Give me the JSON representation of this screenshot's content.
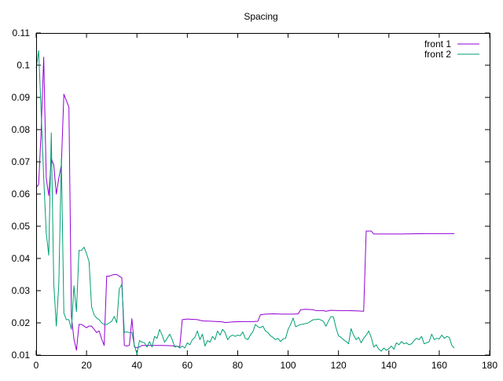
{
  "chart_data": {
    "type": "line",
    "title": "Spacing",
    "xlabel": "",
    "ylabel": "",
    "xlim": [
      0,
      180
    ],
    "ylim": [
      0.01,
      0.11
    ],
    "x_ticks": [
      "0",
      "20",
      "40",
      "60",
      "80",
      "100",
      "120",
      "140",
      "160",
      "180"
    ],
    "y_ticks": [
      "0.01",
      "0.02",
      "0.03",
      "0.04",
      "0.05",
      "0.06",
      "0.07",
      "0.08",
      "0.09",
      "0.1",
      "0.11"
    ],
    "grid": false,
    "legend_position": "top-right",
    "series": [
      {
        "name": "front 1",
        "color": "#9400d3",
        "points": [
          [
            0,
            0.062
          ],
          [
            1,
            0.063
          ],
          [
            2,
            0.08
          ],
          [
            3,
            0.1025
          ],
          [
            4,
            0.065
          ],
          [
            5,
            0.0595
          ],
          [
            6,
            0.071
          ],
          [
            7,
            0.069
          ],
          [
            8,
            0.06
          ],
          [
            9,
            0.065
          ],
          [
            10,
            0.069
          ],
          [
            11,
            0.091
          ],
          [
            12,
            0.089
          ],
          [
            13,
            0.087
          ],
          [
            14,
            0.022
          ],
          [
            15,
            0.015
          ],
          [
            16,
            0.0115
          ],
          [
            17,
            0.0195
          ],
          [
            18,
            0.0195
          ],
          [
            19,
            0.019
          ],
          [
            20,
            0.0185
          ],
          [
            21,
            0.019
          ],
          [
            22,
            0.019
          ],
          [
            23,
            0.018
          ],
          [
            24,
            0.017
          ],
          [
            25,
            0.0175
          ],
          [
            26,
            0.015
          ],
          [
            27,
            0.013
          ],
          [
            28,
            0.0345
          ],
          [
            29,
            0.0345
          ],
          [
            30,
            0.0348
          ],
          [
            31,
            0.035
          ],
          [
            32,
            0.035
          ],
          [
            33,
            0.0345
          ],
          [
            34,
            0.034
          ],
          [
            35,
            0.013
          ],
          [
            36,
            0.0128
          ],
          [
            37,
            0.013
          ],
          [
            38,
            0.0213
          ],
          [
            39,
            0.0125
          ],
          [
            40,
            0.0123
          ],
          [
            41,
            0.0125
          ],
          [
            42,
            0.013
          ],
          [
            44,
            0.013
          ],
          [
            46,
            0.013
          ],
          [
            50,
            0.013
          ],
          [
            54,
            0.0129
          ],
          [
            57,
            0.0126
          ],
          [
            58,
            0.021
          ],
          [
            60,
            0.0212
          ],
          [
            62,
            0.0211
          ],
          [
            64,
            0.021
          ],
          [
            66,
            0.0206
          ],
          [
            70,
            0.0205
          ],
          [
            74,
            0.0203
          ],
          [
            75,
            0.0201
          ],
          [
            78,
            0.0203
          ],
          [
            82,
            0.0204
          ],
          [
            86,
            0.0204
          ],
          [
            88,
            0.0205
          ],
          [
            89,
            0.0225
          ],
          [
            91,
            0.0227
          ],
          [
            94,
            0.0228
          ],
          [
            98,
            0.0227
          ],
          [
            102,
            0.0227
          ],
          [
            104,
            0.0228
          ],
          [
            105,
            0.0241
          ],
          [
            107,
            0.0242
          ],
          [
            110,
            0.0241
          ],
          [
            111,
            0.0238
          ],
          [
            114,
            0.0238
          ],
          [
            115,
            0.0236
          ],
          [
            117,
            0.0239
          ],
          [
            120,
            0.0238
          ],
          [
            124,
            0.0238
          ],
          [
            128,
            0.0237
          ],
          [
            130,
            0.0236
          ],
          [
            131,
            0.0485
          ],
          [
            133,
            0.0485
          ],
          [
            134,
            0.0476
          ],
          [
            138,
            0.0476
          ],
          [
            145,
            0.0476
          ],
          [
            155,
            0.0477
          ],
          [
            166,
            0.0477
          ]
        ]
      },
      {
        "name": "front 2",
        "color": "#009e73",
        "points": [
          [
            0,
            0.099
          ],
          [
            1,
            0.1045
          ],
          [
            2,
            0.085
          ],
          [
            3,
            0.065
          ],
          [
            4,
            0.048
          ],
          [
            5,
            0.041
          ],
          [
            6,
            0.079
          ],
          [
            7,
            0.032
          ],
          [
            8,
            0.019
          ],
          [
            9,
            0.032
          ],
          [
            10,
            0.071
          ],
          [
            11,
            0.023
          ],
          [
            12,
            0.021
          ],
          [
            13,
            0.021
          ],
          [
            14,
            0.018
          ],
          [
            15,
            0.0315
          ],
          [
            16,
            0.0235
          ],
          [
            17,
            0.0425
          ],
          [
            18,
            0.0425
          ],
          [
            19,
            0.0435
          ],
          [
            20,
            0.0415
          ],
          [
            21,
            0.039
          ],
          [
            22,
            0.025
          ],
          [
            23,
            0.0225
          ],
          [
            24,
            0.0215
          ],
          [
            25,
            0.021
          ],
          [
            26,
            0.02
          ],
          [
            27,
            0.0195
          ],
          [
            28,
            0.0195
          ],
          [
            29,
            0.02
          ],
          [
            30,
            0.0205
          ],
          [
            31,
            0.022
          ],
          [
            32,
            0.02
          ],
          [
            33,
            0.0305
          ],
          [
            34,
            0.032
          ],
          [
            35,
            0.017
          ],
          [
            36,
            0.0172
          ],
          [
            37,
            0.017
          ],
          [
            38,
            0.017
          ],
          [
            39,
            0.013
          ],
          [
            40,
            0.0103
          ],
          [
            41,
            0.0145
          ],
          [
            42,
            0.014
          ],
          [
            43,
            0.0138
          ],
          [
            44,
            0.0125
          ],
          [
            45,
            0.0142
          ],
          [
            46,
            0.0125
          ],
          [
            47,
            0.0158
          ],
          [
            48,
            0.0152
          ],
          [
            49,
            0.018
          ],
          [
            50,
            0.0162
          ],
          [
            51,
            0.014
          ],
          [
            52,
            0.0152
          ],
          [
            53,
            0.0165
          ],
          [
            54,
            0.0148
          ],
          [
            55,
            0.0125
          ],
          [
            56,
            0.0128
          ],
          [
            57,
            0.0122
          ],
          [
            58,
            0.0128
          ],
          [
            59,
            0.0122
          ],
          [
            60,
            0.0138
          ],
          [
            61,
            0.0132
          ],
          [
            62,
            0.0148
          ],
          [
            63,
            0.0155
          ],
          [
            64,
            0.0175
          ],
          [
            65,
            0.0148
          ],
          [
            66,
            0.0165
          ],
          [
            67,
            0.0128
          ],
          [
            68,
            0.0145
          ],
          [
            69,
            0.014
          ],
          [
            70,
            0.0158
          ],
          [
            71,
            0.0148
          ],
          [
            72,
            0.0175
          ],
          [
            73,
            0.0162
          ],
          [
            74,
            0.018
          ],
          [
            75,
            0.017
          ],
          [
            76,
            0.0148
          ],
          [
            77,
            0.0158
          ],
          [
            78,
            0.0162
          ],
          [
            79,
            0.0158
          ],
          [
            80,
            0.0162
          ],
          [
            81,
            0.016
          ],
          [
            82,
            0.0172
          ],
          [
            83,
            0.0152
          ],
          [
            84,
            0.0148
          ],
          [
            85,
            0.0162
          ],
          [
            86,
            0.0172
          ],
          [
            87,
            0.0195
          ],
          [
            88,
            0.0188
          ],
          [
            89,
            0.0185
          ],
          [
            90,
            0.019
          ],
          [
            91,
            0.0175
          ],
          [
            92,
            0.017
          ],
          [
            93,
            0.016
          ],
          [
            94,
            0.0155
          ],
          [
            95,
            0.0148
          ],
          [
            96,
            0.0152
          ],
          [
            97,
            0.0142
          ],
          [
            98,
            0.015
          ],
          [
            99,
            0.0152
          ],
          [
            100,
            0.018
          ],
          [
            101,
            0.0195
          ],
          [
            102,
            0.0215
          ],
          [
            103,
            0.0188
          ],
          [
            104,
            0.0192
          ],
          [
            105,
            0.0195
          ],
          [
            106,
            0.0196
          ],
          [
            107,
            0.0198
          ],
          [
            108,
            0.02
          ],
          [
            109,
            0.0205
          ],
          [
            110,
            0.021
          ],
          [
            111,
            0.021
          ],
          [
            112,
            0.0212
          ],
          [
            113,
            0.0209
          ],
          [
            114,
            0.0205
          ],
          [
            115,
            0.019
          ],
          [
            116,
            0.0205
          ],
          [
            117,
            0.022
          ],
          [
            118,
            0.0218
          ],
          [
            119,
            0.0185
          ],
          [
            120,
            0.016
          ],
          [
            121,
            0.0155
          ],
          [
            122,
            0.0148
          ],
          [
            123,
            0.0142
          ],
          [
            124,
            0.0135
          ],
          [
            125,
            0.0182
          ],
          [
            126,
            0.0162
          ],
          [
            127,
            0.0148
          ],
          [
            128,
            0.0155
          ],
          [
            129,
            0.0138
          ],
          [
            130,
            0.0152
          ],
          [
            131,
            0.0162
          ],
          [
            132,
            0.0175
          ],
          [
            133,
            0.0155
          ],
          [
            134,
            0.0125
          ],
          [
            135,
            0.0132
          ],
          [
            136,
            0.0118
          ],
          [
            137,
            0.0112
          ],
          [
            138,
            0.0122
          ],
          [
            139,
            0.0115
          ],
          [
            140,
            0.012
          ],
          [
            141,
            0.0128
          ],
          [
            142,
            0.0118
          ],
          [
            143,
            0.0138
          ],
          [
            144,
            0.0132
          ],
          [
            145,
            0.0142
          ],
          [
            146,
            0.0135
          ],
          [
            147,
            0.0138
          ],
          [
            148,
            0.0132
          ],
          [
            149,
            0.0135
          ],
          [
            150,
            0.0145
          ],
          [
            151,
            0.0152
          ],
          [
            152,
            0.0148
          ],
          [
            153,
            0.0158
          ],
          [
            154,
            0.0135
          ],
          [
            155,
            0.0138
          ],
          [
            156,
            0.0142
          ],
          [
            157,
            0.0165
          ],
          [
            158,
            0.0148
          ],
          [
            159,
            0.0152
          ],
          [
            160,
            0.015
          ],
          [
            161,
            0.0162
          ],
          [
            162,
            0.0152
          ],
          [
            163,
            0.0158
          ],
          [
            164,
            0.0155
          ],
          [
            165,
            0.013
          ],
          [
            166,
            0.0122
          ]
        ]
      }
    ]
  }
}
